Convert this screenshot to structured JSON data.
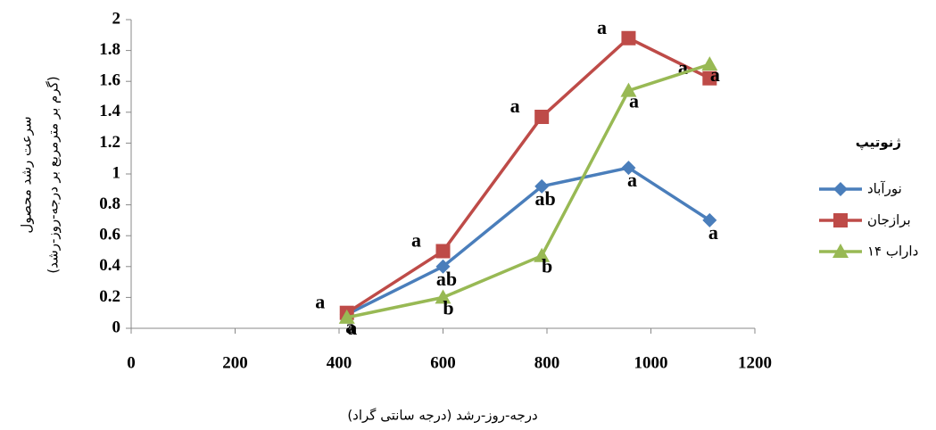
{
  "chart_data": {
    "type": "line",
    "x_label": "درجه-روز-رشد (درجه سانتی گراد)",
    "y_label": [
      "سرعت رشد محصول",
      "(گرم بر مترمربع بر درجه-روز-رشد)"
    ],
    "legend_title": "ژنوتیپ",
    "legend": "right",
    "x": [
      415,
      600,
      790,
      957,
      1113
    ],
    "series": [
      {
        "name": "نورآباد",
        "color": "#4a7ebb",
        "marker": "diamond",
        "values": [
          0.09,
          0.4,
          0.92,
          1.04,
          0.7
        ],
        "letters": [
          "a",
          "ab",
          "ab",
          "a",
          "a"
        ]
      },
      {
        "name": "برازجان",
        "color": "#be4b48",
        "marker": "square",
        "values": [
          0.1,
          0.5,
          1.37,
          1.88,
          1.62
        ],
        "letters": [
          "a",
          "a",
          "a",
          "a",
          "a"
        ]
      },
      {
        "name": "داراب ۱۴",
        "color": "#98b954",
        "marker": "triangle",
        "values": [
          0.07,
          0.2,
          0.47,
          1.54,
          1.71
        ],
        "letters": [
          "a",
          "b",
          "b",
          "a",
          "a"
        ]
      }
    ],
    "xlim": [
      0,
      1200
    ],
    "xticks": [
      0,
      200,
      400,
      600,
      800,
      1000,
      1200
    ],
    "ylim": [
      0,
      2
    ],
    "yticks": [
      0,
      0.2,
      0.4,
      0.6,
      0.8,
      1,
      1.2,
      1.4,
      1.6,
      1.8,
      2
    ],
    "grid": false
  }
}
